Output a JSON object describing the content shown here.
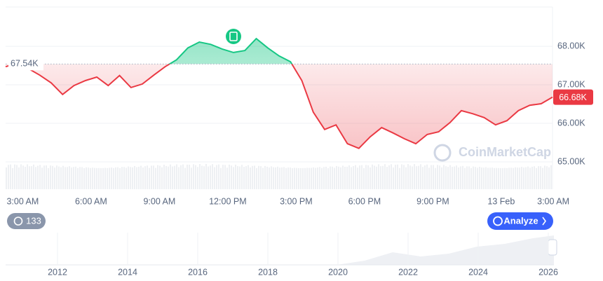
{
  "chart_data": {
    "type": "line",
    "x": [
      2.25,
      2.75,
      3.25,
      3.75,
      4.25,
      4.75,
      5.25,
      5.75,
      6.25,
      6.75,
      7.25,
      7.75,
      8.25,
      8.75,
      9.25,
      9.75,
      10.25,
      10.75,
      11.25,
      11.75,
      12.25,
      12.75,
      13.25,
      13.75,
      14.25,
      14.75,
      15.25,
      15.75,
      16.25,
      16.75,
      17.25,
      17.75,
      18.25,
      18.75,
      19.25,
      19.75,
      20.25,
      20.75,
      21.25,
      21.75,
      22.25,
      22.75,
      23.25,
      23.75,
      24.25,
      24.75,
      25.25,
      25.75,
      26.25
    ],
    "values": [
      67.47,
      67.56,
      67.42,
      67.25,
      67.05,
      66.75,
      66.98,
      67.11,
      67.2,
      66.98,
      67.24,
      66.93,
      67.02,
      67.25,
      67.47,
      67.65,
      67.96,
      68.11,
      68.05,
      67.93,
      67.84,
      67.89,
      68.2,
      67.96,
      67.75,
      67.6,
      67.11,
      66.29,
      65.84,
      65.96,
      65.47,
      65.35,
      65.65,
      65.89,
      65.75,
      65.6,
      65.47,
      65.71,
      65.78,
      66.02,
      66.33,
      66.25,
      66.15,
      65.96,
      66.07,
      66.33,
      66.47,
      66.51,
      66.68
    ],
    "up_color": "#16c784",
    "down_color": "#ea3943",
    "baseline": 67.54,
    "baseline_label": "67.54K",
    "current_label": "66.68K",
    "xlim": [
      2.25,
      26.25
    ],
    "xticks": [
      {
        "value": 3,
        "label": "3:00 AM"
      },
      {
        "value": 6,
        "label": "6:00 AM"
      },
      {
        "value": 9,
        "label": "9:00 AM"
      },
      {
        "value": 12,
        "label": "12:00 PM"
      },
      {
        "value": 15,
        "label": "3:00 PM"
      },
      {
        "value": 18,
        "label": "6:00 PM"
      },
      {
        "value": 21,
        "label": "9:00 PM"
      },
      {
        "value": 24,
        "label": "13 Feb"
      },
      {
        "value": 27,
        "label": "3:00 AM"
      }
    ],
    "ylim": [
      64.29,
      69.02
    ],
    "yticks": [
      {
        "value": 65,
        "label": "65.00K"
      },
      {
        "value": 66,
        "label": "66.00K"
      },
      {
        "value": 67,
        "label": "67.00K"
      },
      {
        "value": 68,
        "label": "68.00K"
      }
    ],
    "grid": true,
    "watermark": "CoinMarketCap",
    "history_count": "133",
    "analyze_button": "Analyze",
    "navigator_ticks": [
      2012,
      2014,
      2016,
      2018,
      2020,
      2022,
      2024,
      2026
    ]
  }
}
